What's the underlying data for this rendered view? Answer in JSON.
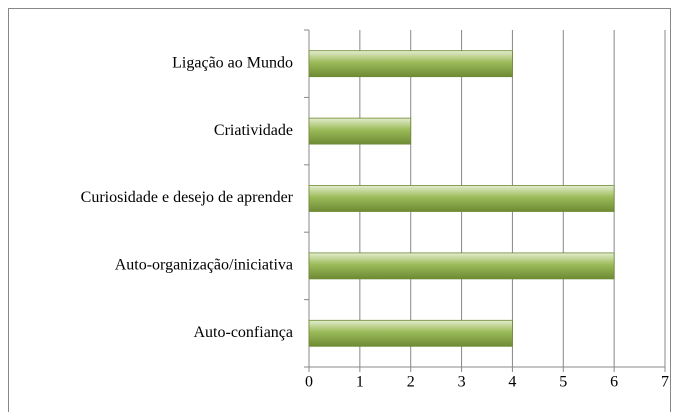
{
  "chart_data": {
    "type": "hbar",
    "categories": [
      "Ligação ao Mundo",
      "Criatividade",
      "Curiosidade e desejo de aprender",
      "Auto-organização/iniciativa",
      "Auto-confiança"
    ],
    "values": [
      4,
      2,
      6,
      6,
      4
    ],
    "color": "#9bbb59",
    "xlim": [
      0,
      7
    ],
    "xticks": [
      0,
      1,
      2,
      3,
      4,
      5,
      6,
      7
    ],
    "grid": true
  }
}
